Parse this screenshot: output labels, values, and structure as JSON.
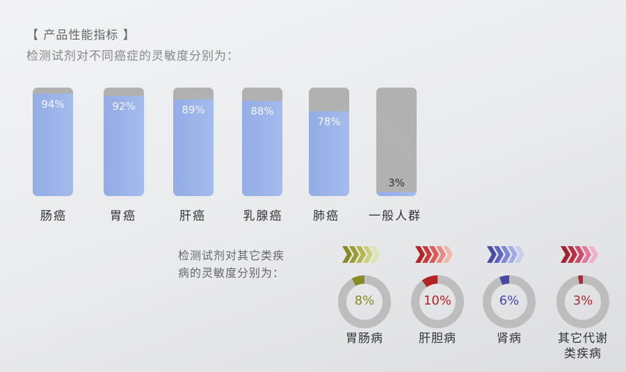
{
  "header": "【 产品性能指标 】",
  "subtitle": "检测试剂对不同癌症的灵敏度分别为：",
  "chart_data": [
    {
      "type": "bar",
      "title": "检测试剂对不同癌症的灵敏度分别为：",
      "categories": [
        "肠癌",
        "胃癌",
        "肝癌",
        "乳腺癌",
        "肺癌",
        "一般人群"
      ],
      "values": [
        94,
        92,
        89,
        88,
        78,
        3
      ],
      "value_labels": [
        "94%",
        "92%",
        "89%",
        "88%",
        "78%",
        "3%"
      ],
      "ylim": [
        0,
        100
      ],
      "colors": {
        "fill": "#9cb4ea",
        "track": "#b0b0b0"
      }
    },
    {
      "type": "pie",
      "title_lines": [
        "检测试剂对其它类疾",
        "病的灵敏度分别为："
      ],
      "categories": [
        "胃肠病",
        "肝胆病",
        "肾病",
        "其它代谢类疾病"
      ],
      "label_lines": [
        [
          "胃肠病"
        ],
        [
          "肝胆病"
        ],
        [
          "肾病"
        ],
        [
          "其它代谢",
          "类疾病"
        ]
      ],
      "values": [
        8,
        10,
        6,
        3
      ],
      "value_labels": [
        "8%",
        "10%",
        "6%",
        "3%"
      ],
      "colors": [
        "#8a8a22",
        "#b52424",
        "#4848a8",
        "#a82830"
      ],
      "chevron_colors": [
        [
          "#8a8a22",
          "#9c9c30",
          "#b4b648",
          "#c8d07a",
          "#dfe3b0"
        ],
        [
          "#b52424",
          "#c83a3a",
          "#dc5a50",
          "#e98a80",
          "#f2b8ae"
        ],
        [
          "#4a4aa8",
          "#5c64c0",
          "#7c86d4",
          "#a0abe2",
          "#c6ceee"
        ],
        [
          "#a02430",
          "#b83040",
          "#cc4a68",
          "#e07a9a",
          "#f0b0c8"
        ]
      ]
    }
  ]
}
